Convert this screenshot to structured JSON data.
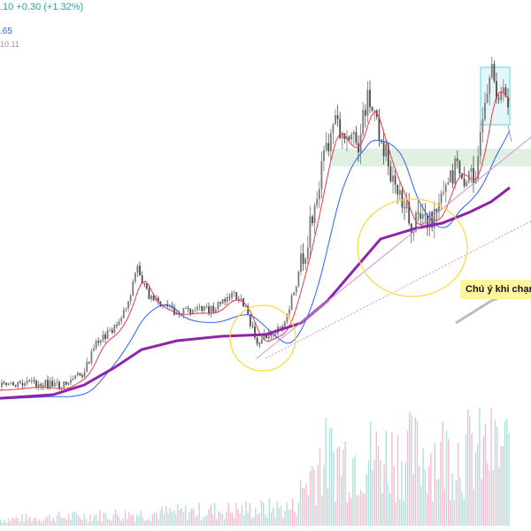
{
  "header": {
    "price_line": ".10  +0.30 (+1.32%)",
    "ma1_value": ".65",
    "ma2_value": "10.11"
  },
  "annotation": {
    "note_text": "Chú ý khi chạm"
  },
  "colors": {
    "up": "#7a7a7a",
    "down": "#4a4a4a",
    "ma_fast": "#f23645",
    "ma_mid": "#2962ff",
    "ma_slow": "#8e24aa",
    "vol_up": "#b2dfdb",
    "vol_down": "#f8bbd0",
    "trendline": "#ce93d8",
    "circle": "#fdd835",
    "box": "#4dd0e1",
    "zone": "#c8e6c9"
  },
  "chart_data": {
    "type": "line",
    "xlabel": "",
    "ylabel": "",
    "series": [
      {
        "values": [
          10,
          10,
          11,
          11,
          12,
          12,
          12,
          12,
          12,
          13,
          14,
          15,
          17,
          19,
          21,
          24,
          26,
          29,
          32,
          35,
          38,
          42,
          46,
          50,
          54,
          58,
          62,
          66,
          70,
          74,
          78,
          82,
          86,
          88,
          90,
          91,
          92,
          93,
          94,
          95,
          96,
          96,
          97,
          97,
          98,
          98,
          99,
          99,
          100,
          100,
          101,
          102,
          103,
          104,
          105,
          107,
          109,
          111,
          113,
          116,
          119,
          122,
          125,
          128,
          132,
          136,
          140,
          145,
          150,
          156,
          162,
          168,
          174,
          180,
          186,
          192,
          198,
          204,
          210,
          216,
          222,
          228,
          234,
          240,
          246,
          252,
          258,
          264,
          270,
          276,
          282,
          288,
          294,
          300,
          305,
          310,
          315,
          320,
          325,
          330,
          335,
          340,
          345,
          350,
          355,
          360,
          365,
          370,
          375,
          380,
          385,
          390,
          395,
          400,
          405,
          410,
          415,
          420,
          425,
          430,
          435,
          440,
          445,
          450,
          455,
          460,
          465,
          470,
          475,
          480,
          485,
          490,
          495,
          500,
          505,
          510,
          515,
          520,
          525,
          530,
          535,
          540,
          545,
          550
        ]
      }
    ]
  }
}
